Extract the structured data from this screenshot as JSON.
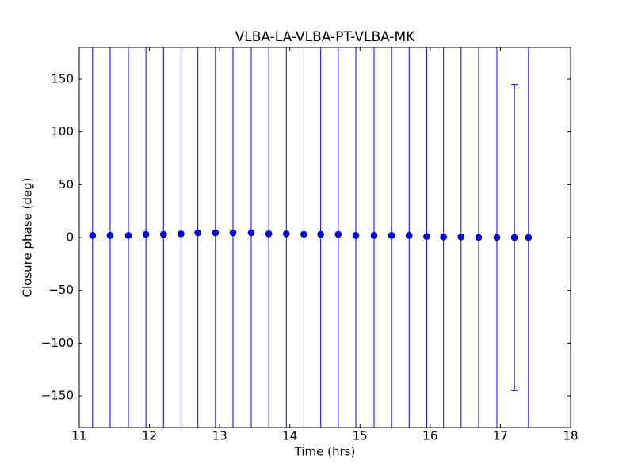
{
  "chart_data": {
    "type": "errorbar",
    "title": "VLBA-LA-VLBA-PT-VLBA-MK",
    "x_label": "Time (hrs)",
    "y_label": "Closure phase (deg)",
    "xlim": [
      11,
      18
    ],
    "ylim": [
      -180,
      180
    ],
    "xticks": [
      11,
      12,
      13,
      14,
      15,
      16,
      17,
      18
    ],
    "yticks": [
      {
        "value": -150,
        "label": "−150"
      },
      {
        "value": -100,
        "label": "−100"
      },
      {
        "value": -50,
        "label": "−50"
      },
      0,
      50,
      100,
      150
    ],
    "grid": false,
    "series": [
      {
        "color": "#0000ff",
        "x": [
          11.19,
          11.44,
          11.7,
          11.95,
          12.2,
          12.45,
          12.69,
          12.94,
          13.19,
          13.45,
          13.7,
          13.95,
          14.2,
          14.44,
          14.69,
          14.94,
          15.2,
          15.45,
          15.7,
          15.95,
          16.19,
          16.44,
          16.69,
          16.95,
          17.2,
          17.4
        ],
        "values": [
          2,
          2,
          2,
          3,
          3,
          3.5,
          4.5,
          4.5,
          4.5,
          4.5,
          3.5,
          3.5,
          3,
          3,
          3,
          2,
          2,
          2,
          2,
          1,
          0.5,
          0.5,
          0,
          0,
          0,
          0
        ],
        "errors": [
          200,
          200,
          200,
          200,
          200,
          200,
          200,
          200,
          200,
          200,
          200,
          200,
          200,
          200,
          200,
          200,
          200,
          200,
          200,
          200,
          200,
          200,
          200,
          200,
          145,
          200
        ]
      }
    ]
  }
}
